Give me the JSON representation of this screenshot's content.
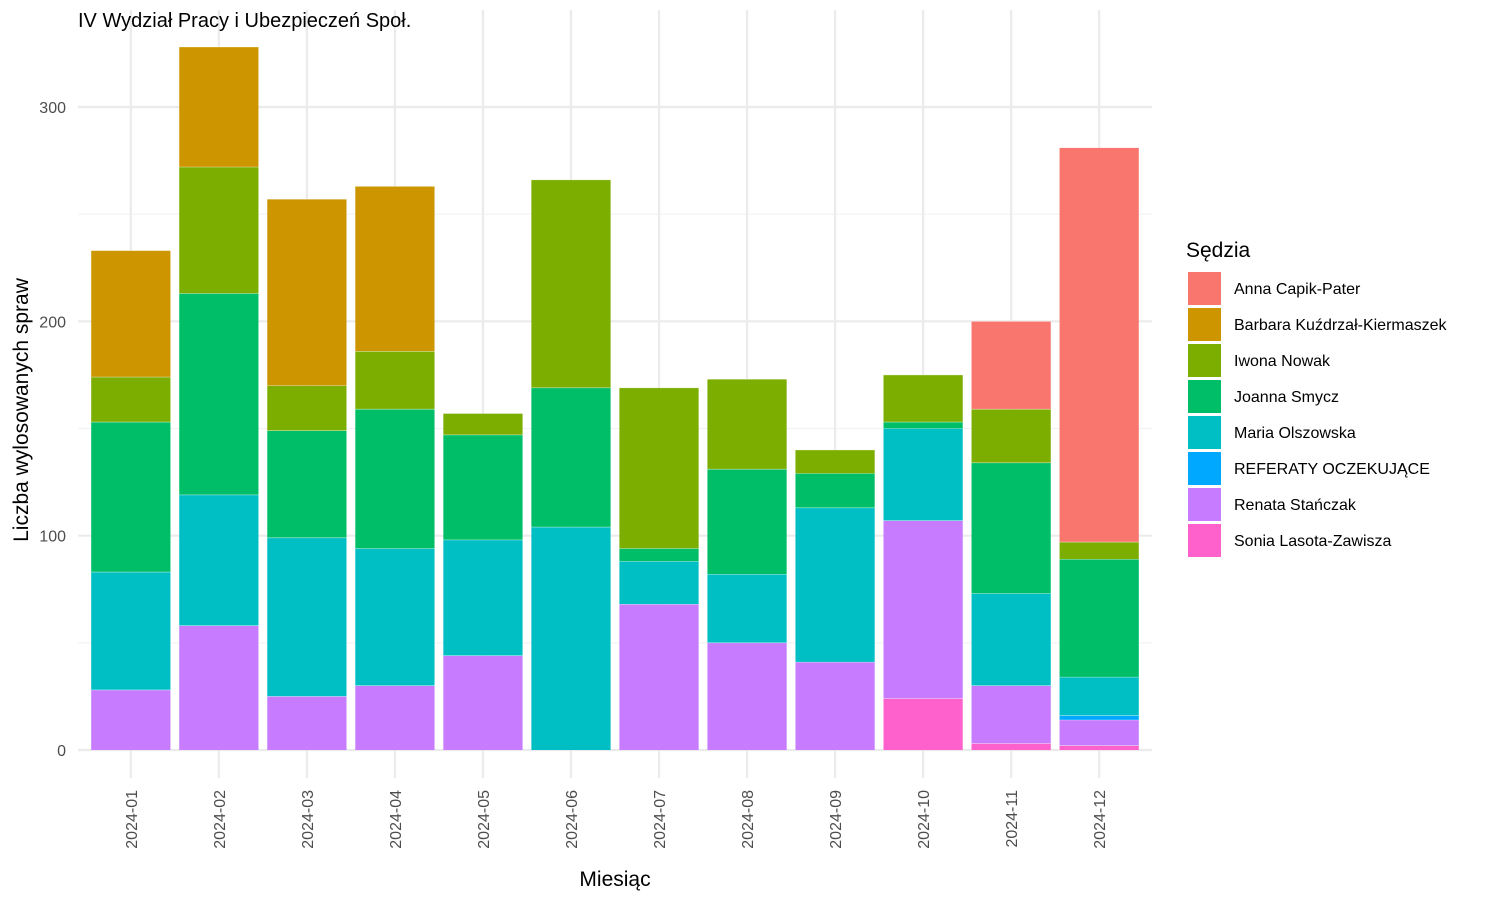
{
  "chart_data": {
    "type": "bar",
    "stacked": true,
    "title": "IV Wydział Pracy i Ubezpieczeń Społ.",
    "xlabel": "Miesiąc",
    "ylabel": "Liczba wylosowanych spraw",
    "ylim": [
      0,
      330
    ],
    "yticks": [
      0,
      100,
      200,
      300
    ],
    "grid": true,
    "legend_title": "Sędzia",
    "legend_position": "right",
    "categories": [
      "2024-01",
      "2024-02",
      "2024-03",
      "2024-04",
      "2024-05",
      "2024-06",
      "2024-07",
      "2024-08",
      "2024-09",
      "2024-10",
      "2024-11",
      "2024-12"
    ],
    "stack_order_bottom_to_top": [
      "Sonia Lasota-Zawisza",
      "Renata Stańczak",
      "REFERATY OCZEKUJĄCE",
      "Maria Olszowska",
      "Joanna Smycz",
      "Iwona Nowak",
      "Barbara Kuźdrzał-Kiermaszek",
      "Anna Capik-Pater"
    ],
    "series": [
      {
        "name": "Anna Capik-Pater",
        "color": "#F8766D",
        "values": [
          0,
          0,
          0,
          0,
          0,
          0,
          0,
          0,
          0,
          0,
          41,
          184
        ]
      },
      {
        "name": "Barbara Kuźdrzał-Kiermaszek",
        "color": "#CD9600",
        "values": [
          59,
          56,
          87,
          77,
          0,
          0,
          0,
          0,
          0,
          0,
          0,
          0
        ]
      },
      {
        "name": "Iwona Nowak",
        "color": "#7CAE00",
        "values": [
          21,
          59,
          21,
          27,
          10,
          97,
          75,
          42,
          11,
          22,
          25,
          8
        ]
      },
      {
        "name": "Joanna Smycz",
        "color": "#00BE67",
        "values": [
          70,
          94,
          50,
          65,
          49,
          65,
          6,
          49,
          16,
          3,
          61,
          55
        ]
      },
      {
        "name": "Maria Olszowska",
        "color": "#00BFC4",
        "values": [
          55,
          61,
          74,
          64,
          54,
          104,
          20,
          32,
          72,
          43,
          43,
          18
        ]
      },
      {
        "name": "REFERATY OCZEKUJĄCE",
        "color": "#00A9FF",
        "values": [
          0,
          0,
          0,
          0,
          0,
          0,
          0,
          0,
          0,
          0,
          0,
          2
        ]
      },
      {
        "name": "Renata Stańczak",
        "color": "#C77CFF",
        "values": [
          28,
          58,
          25,
          30,
          44,
          0,
          68,
          50,
          41,
          83,
          27,
          12
        ]
      },
      {
        "name": "Sonia Lasota-Zawisza",
        "color": "#FF61CC",
        "values": [
          0,
          0,
          0,
          0,
          0,
          0,
          0,
          0,
          0,
          24,
          3,
          2
        ]
      }
    ]
  }
}
